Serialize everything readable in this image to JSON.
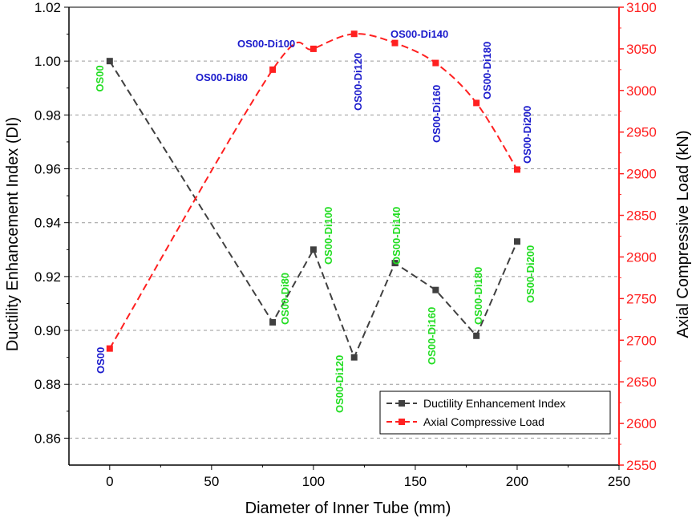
{
  "chart_data": {
    "type": "line",
    "xlabel": "Diameter of Inner Tube (mm)",
    "ylabel_left": "Ductility Enhancement Index (DI)",
    "ylabel_right": "Axial Compressive Load (kN)",
    "xlim": [
      -20,
      250
    ],
    "ylim_left": [
      0.85,
      1.02
    ],
    "ylim_right": [
      2550,
      3100
    ],
    "x_ticks": [
      0,
      50,
      100,
      150,
      200,
      250
    ],
    "y_ticks_left": [
      0.86,
      0.88,
      0.9,
      0.92,
      0.94,
      0.96,
      0.98,
      1.0,
      1.02
    ],
    "y_ticks_right": [
      2550,
      2600,
      2650,
      2700,
      2750,
      2800,
      2850,
      2900,
      2950,
      3000,
      3050,
      3100
    ],
    "grid": "horizontal dashed",
    "legend_position": "bottom-right",
    "colors": {
      "di": "#404040",
      "load": "#ff2020",
      "di_labels": "#22dd22",
      "load_labels": "#1a1acc",
      "right_axis": "#ff2020"
    },
    "series": [
      {
        "name": "Ductility Enhancement Index",
        "axis": "left",
        "x": [
          0,
          80,
          100,
          120,
          140,
          160,
          180,
          200
        ],
        "y": [
          1.0,
          0.903,
          0.93,
          0.89,
          0.925,
          0.915,
          0.898,
          0.933
        ],
        "labels": [
          "OS00",
          "OS00-Di80",
          "OS00-Di100",
          "OS00-Di120",
          "OS00-Di140",
          "OS00-Di160",
          "OS00-Di180",
          "OS00-Di200"
        ]
      },
      {
        "name": "Axial Compressive Load",
        "axis": "right",
        "x": [
          0,
          80,
          100,
          120,
          140,
          160,
          180,
          200
        ],
        "y": [
          2690,
          3025,
          3050,
          3068,
          3057,
          3033,
          2985,
          2905
        ],
        "labels": [
          "OS00",
          "OS00-Di80",
          "OS00-Di100",
          "OS00-Di120",
          "OS00-Di140",
          "OS00-Di160",
          "OS00-Di180",
          "OS00-Di200"
        ]
      }
    ]
  }
}
